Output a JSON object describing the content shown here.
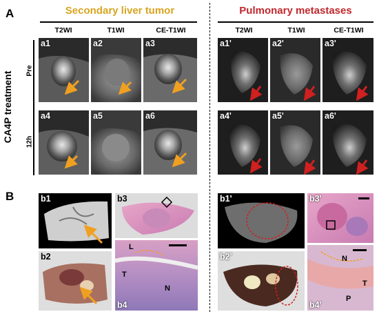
{
  "section_a": "A",
  "section_b": "B",
  "left_title": "Secondary liver tumor",
  "right_title": "Pulmonary metastases",
  "columns_left": [
    "T2WI",
    "T1WI",
    "CE-T1WI"
  ],
  "columns_right": [
    "T2WI",
    "T1WI",
    "CE-T1WI"
  ],
  "treatment_label": "CA4P treatment",
  "rows": [
    "Pre",
    "12h"
  ],
  "mri_left": [
    "a1",
    "a2",
    "a3",
    "a4",
    "a5",
    "a6"
  ],
  "mri_right": [
    "a1'",
    "a2'",
    "a3'",
    "a4'",
    "a5'",
    "a6'"
  ],
  "b_left": [
    "b1",
    "b2",
    "b3",
    "b4"
  ],
  "b_right": [
    "b1'",
    "b2'",
    "b3'",
    "b4'"
  ],
  "histo_left": {
    "L": "L",
    "T": "T",
    "N": "N"
  },
  "histo_right": {
    "N": "N",
    "T": "T",
    "P": "P"
  },
  "colors": {
    "left_title": "#d9a520",
    "right_title": "#c0282d",
    "arrow_orange": "#f0a020",
    "arrow_red": "#d02020"
  }
}
